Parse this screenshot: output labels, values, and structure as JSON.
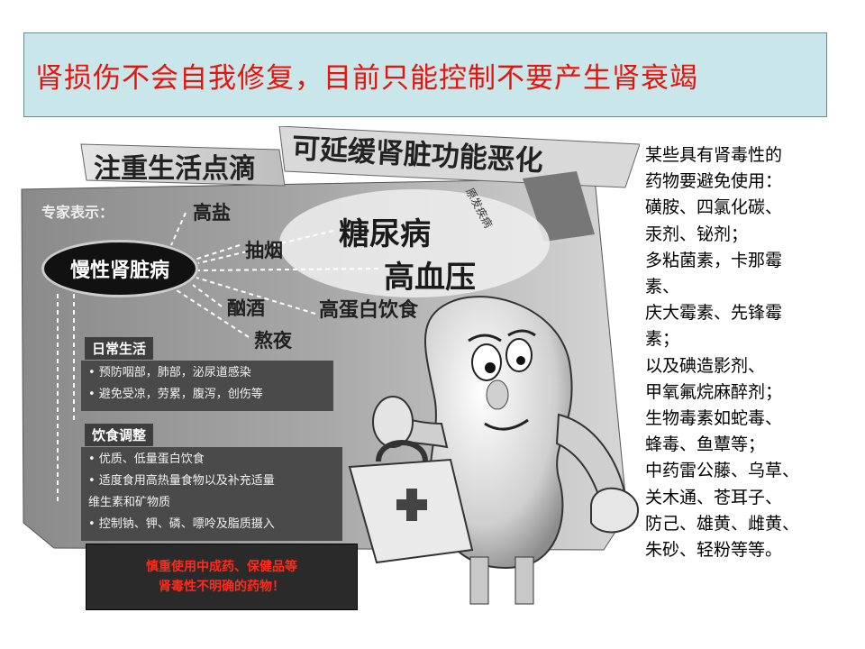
{
  "slide": {
    "title": "肾损伤不会自我修复，目前只能控制不要产生肾衰竭"
  },
  "poster": {
    "headline_left": "注重生活点滴",
    "headline_right": "可延缓肾脏功能恶化",
    "expert_label": "专家表示：",
    "center_label": "慢性肾脏病",
    "causes": {
      "salt": "高盐",
      "smoking": "抽烟",
      "drinking": "酗酒",
      "late_nights": "熬夜",
      "diabetes": "糖尿病",
      "hypertension": "高血压",
      "high_protein": "高蛋白饮食",
      "tag": "原发疾病"
    },
    "daily_life": {
      "heading": "日常生活",
      "items": [
        "• 预防咽部，肺部，泌尿道感染",
        "• 避免受凉，劳累，腹泻，创伤等"
      ]
    },
    "diet": {
      "heading": "饮食调整",
      "items": [
        "• 优质、低量蛋白饮食",
        "• 适度食用高热量食物以及补充适量",
        "  维生素和矿物质",
        "• 控制钠、钾、磷、嘌呤及脂质摄入"
      ]
    }
  },
  "warning": {
    "line1": "慎重使用中成药、保健品等",
    "line2": "肾毒性不明确的药物！"
  },
  "side_note": {
    "lines": [
      "某些具有肾毒性的",
      "药物要避免使用：",
      "磺胺、四氯化碳、",
      "汞剂、铋剂；",
      "多粘菌素，卡那霉",
      "素、",
      "庆大霉素、先锋霉",
      "素；",
      "以及碘造影剂、",
      "甲氧氟烷麻醉剂；",
      "生物毒素如蛇毒、",
      "蜂毒、鱼蕈等；",
      "中药雷公藤、乌草、",
      "关木通、苍耳子、",
      "防己、雄黄、雌黄、",
      "朱砂、轻粉等等。"
    ]
  },
  "colors": {
    "title_bg": "#c9e6ea",
    "title_text": "#e8140c",
    "warning_text": "#ff2a1a"
  }
}
